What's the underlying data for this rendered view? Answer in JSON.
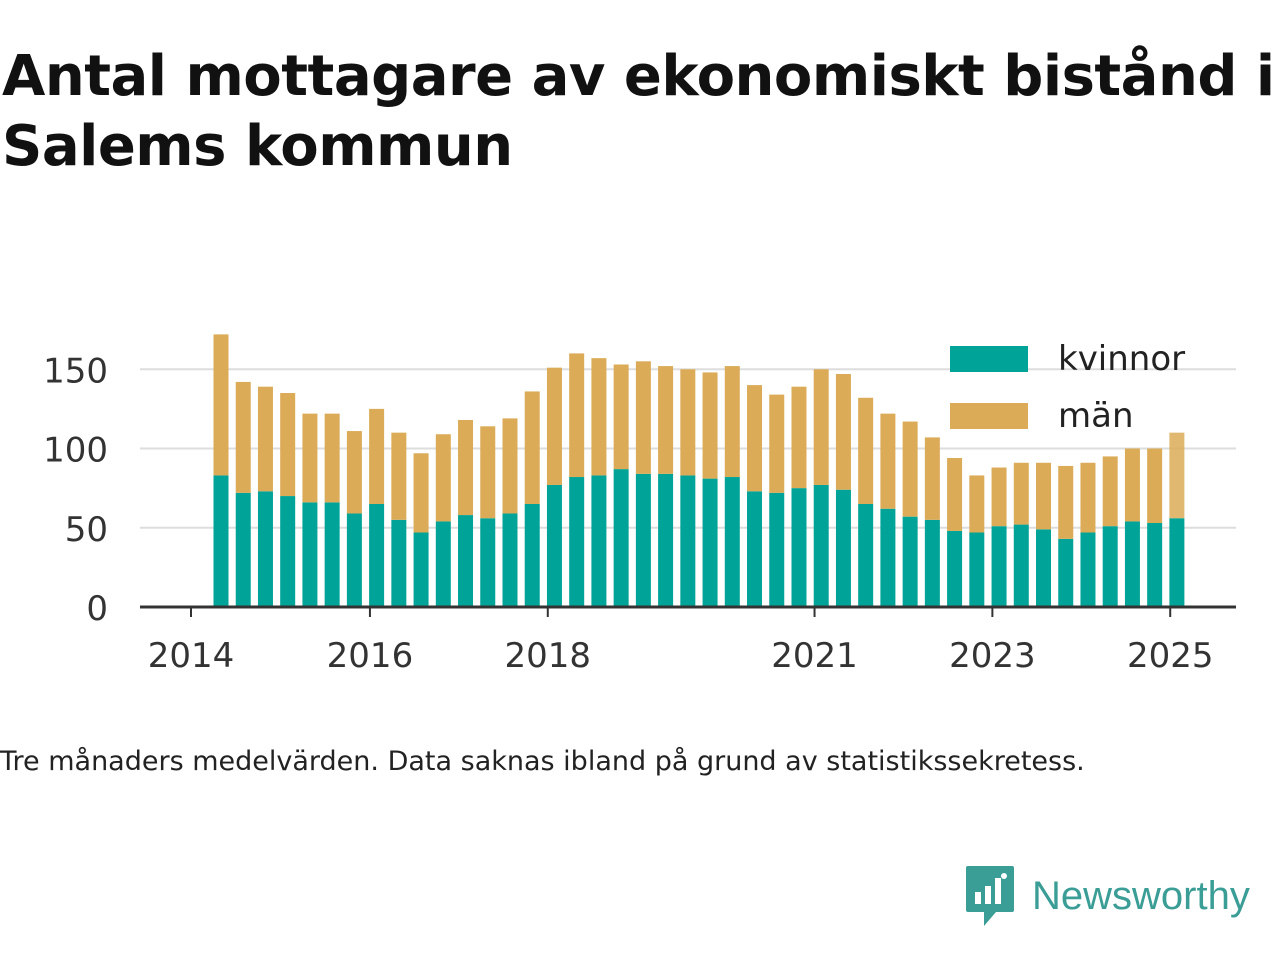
{
  "title": "Antal mottagare av ekonomiskt bistånd i Salems kommun",
  "footnote": "Tre månaders medelvärden. Data saknas ibland på grund av statistikssekretess.",
  "brand": {
    "name": "Newsworthy",
    "icon": "newsworthy-logo-icon",
    "color": "#3a9d96"
  },
  "colors": {
    "kvinnor": "#00a398",
    "man": "#dbab57",
    "grid": "#dddddd",
    "axis": "#333333"
  },
  "chart_data": {
    "type": "bar",
    "stacked": true,
    "title": "",
    "xlabel": "",
    "ylabel": "",
    "ylim": [
      0,
      175
    ],
    "yticks": [
      0,
      50,
      100,
      150
    ],
    "xticks": [
      "2014",
      "2016",
      "2018",
      "2021",
      "2023",
      "2025"
    ],
    "grid": true,
    "legend_position": "top-right",
    "categories": [
      "2014-Q2",
      "2014-Q3",
      "2014-Q4",
      "2015-Q1",
      "2015-Q2",
      "2015-Q3",
      "2015-Q4",
      "2016-Q1",
      "2016-Q2",
      "2016-Q3",
      "2016-Q4",
      "2017-Q1",
      "2017-Q2",
      "2017-Q3",
      "2017-Q4",
      "2018-Q1",
      "2018-Q2",
      "2018-Q3",
      "2018-Q4",
      "2019-Q1",
      "2019-Q2",
      "2019-Q3",
      "2019-Q4",
      "2020-Q1",
      "2020-Q2",
      "2020-Q3",
      "2020-Q4",
      "2021-Q1",
      "2021-Q2",
      "2021-Q3",
      "2021-Q4",
      "2022-Q1",
      "2022-Q2",
      "2022-Q3",
      "2022-Q4",
      "2023-Q1",
      "2023-Q2",
      "2023-Q3",
      "2023-Q4",
      "2024-Q1",
      "2024-Q2",
      "2024-Q3",
      "2024-Q4",
      "2025-Q1"
    ],
    "series": [
      {
        "name": "kvinnor",
        "color": "#00a398",
        "values": [
          83,
          72,
          73,
          70,
          66,
          66,
          59,
          65,
          55,
          47,
          54,
          58,
          56,
          59,
          65,
          77,
          82,
          83,
          87,
          84,
          84,
          83,
          81,
          82,
          73,
          72,
          75,
          77,
          74,
          65,
          62,
          57,
          55,
          48,
          47,
          51,
          52,
          49,
          43,
          47,
          51,
          54,
          53,
          56
        ]
      },
      {
        "name": "män",
        "color": "#dbab57",
        "values": [
          89,
          70,
          66,
          65,
          56,
          56,
          52,
          60,
          55,
          50,
          55,
          60,
          58,
          60,
          71,
          74,
          78,
          74,
          66,
          71,
          68,
          67,
          67,
          70,
          67,
          62,
          64,
          73,
          73,
          67,
          60,
          60,
          52,
          46,
          36,
          37,
          39,
          42,
          46,
          44,
          44,
          46,
          47,
          54
        ]
      }
    ]
  }
}
